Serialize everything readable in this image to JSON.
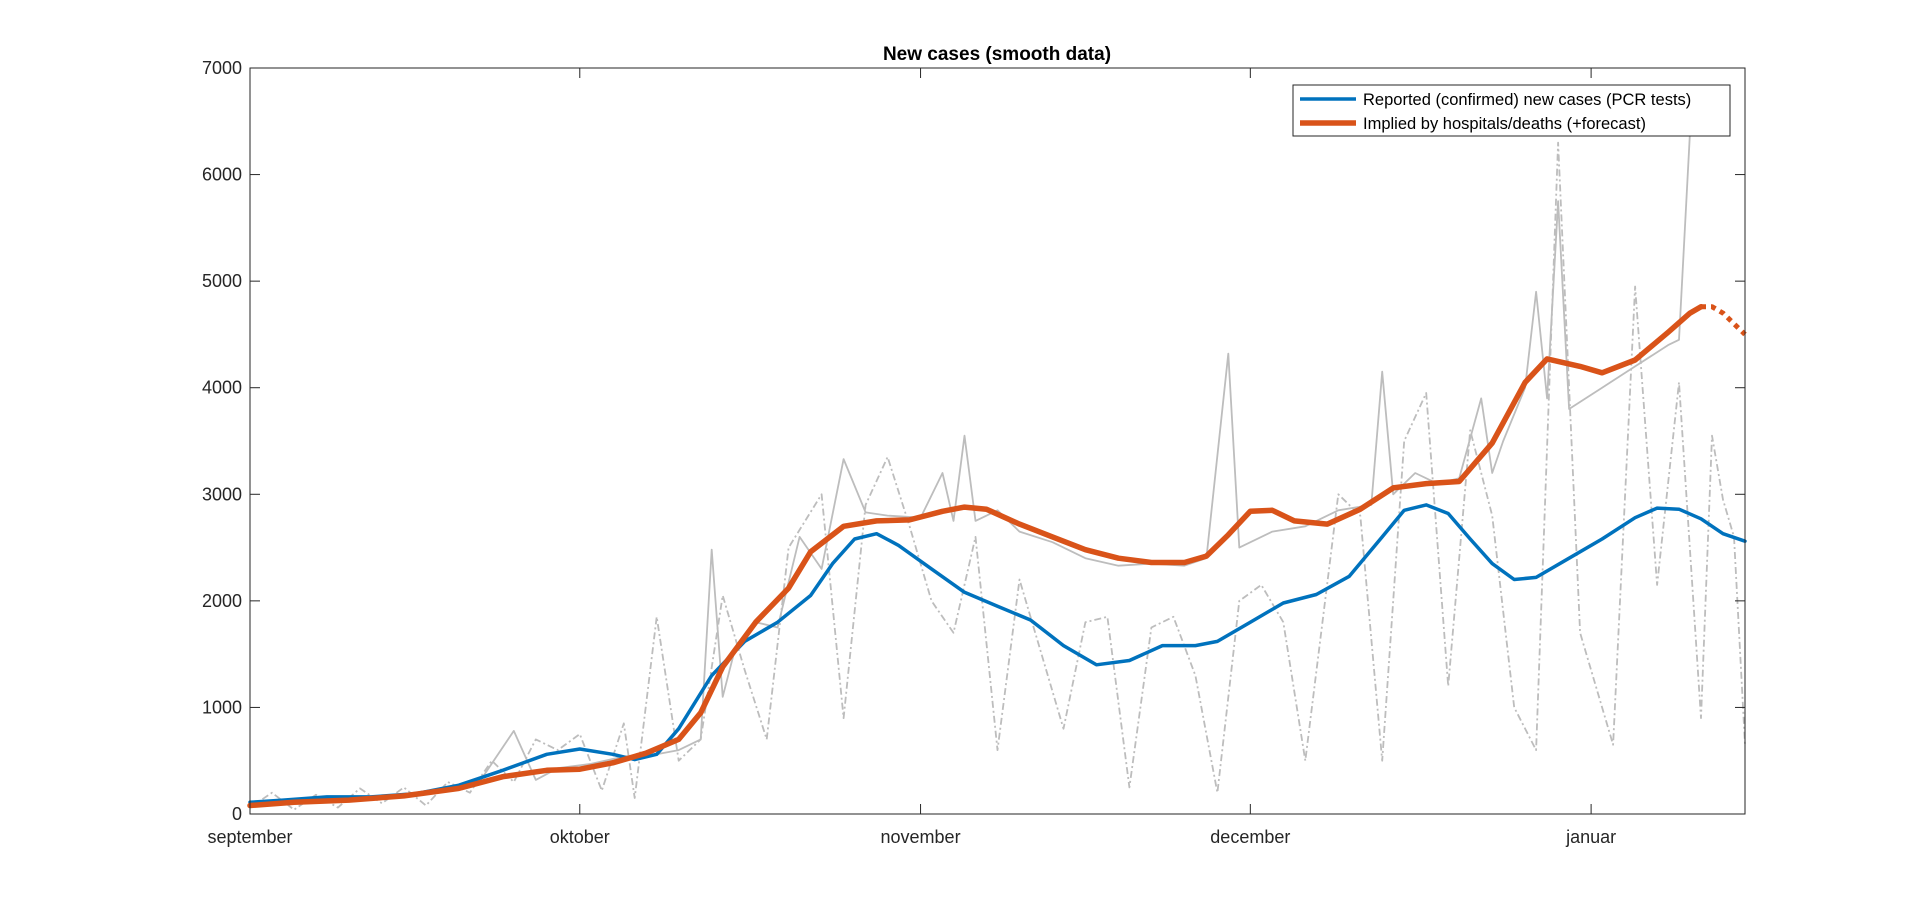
{
  "chart_data": {
    "type": "line",
    "title": "New cases (smooth data)",
    "xlabel": "",
    "ylabel": "",
    "xlim": [
      "2020-09-01",
      "2021-01-15"
    ],
    "ylim": [
      0,
      7000
    ],
    "yticks": [
      0,
      1000,
      2000,
      3000,
      4000,
      5000,
      6000,
      7000
    ],
    "xticks": [
      {
        "date": "2020-09-01",
        "label": "september"
      },
      {
        "date": "2020-10-01",
        "label": "oktober"
      },
      {
        "date": "2020-11-01",
        "label": "november"
      },
      {
        "date": "2020-12-01",
        "label": "december"
      },
      {
        "date": "2021-01-01",
        "label": "januar"
      }
    ],
    "grid": false,
    "legend_position": "top-right",
    "series": [
      {
        "name": "Reported (confirmed) new cases (PCR tests)",
        "color": "#0072BD",
        "style": "solid",
        "points": [
          [
            "2020-09-01",
            110
          ],
          [
            "2020-09-04",
            130
          ],
          [
            "2020-09-08",
            160
          ],
          [
            "2020-09-12",
            160
          ],
          [
            "2020-09-16",
            190
          ],
          [
            "2020-09-20",
            270
          ],
          [
            "2020-09-24",
            410
          ],
          [
            "2020-09-28",
            560
          ],
          [
            "2020-10-01",
            610
          ],
          [
            "2020-10-04",
            560
          ],
          [
            "2020-10-06",
            510
          ],
          [
            "2020-10-08",
            560
          ],
          [
            "2020-10-10",
            800
          ],
          [
            "2020-10-13",
            1300
          ],
          [
            "2020-10-16",
            1620
          ],
          [
            "2020-10-19",
            1800
          ],
          [
            "2020-10-22",
            2050
          ],
          [
            "2020-10-24",
            2350
          ],
          [
            "2020-10-26",
            2580
          ],
          [
            "2020-10-28",
            2630
          ],
          [
            "2020-10-30",
            2520
          ],
          [
            "2020-11-02",
            2300
          ],
          [
            "2020-11-05",
            2080
          ],
          [
            "2020-11-08",
            1950
          ],
          [
            "2020-11-11",
            1820
          ],
          [
            "2020-11-14",
            1580
          ],
          [
            "2020-11-17",
            1400
          ],
          [
            "2020-11-20",
            1440
          ],
          [
            "2020-11-23",
            1580
          ],
          [
            "2020-11-26",
            1580
          ],
          [
            "2020-11-28",
            1620
          ],
          [
            "2020-12-01",
            1800
          ],
          [
            "2020-12-04",
            1980
          ],
          [
            "2020-12-07",
            2060
          ],
          [
            "2020-12-10",
            2230
          ],
          [
            "2020-12-13",
            2600
          ],
          [
            "2020-12-15",
            2850
          ],
          [
            "2020-12-17",
            2900
          ],
          [
            "2020-12-19",
            2820
          ],
          [
            "2020-12-21",
            2580
          ],
          [
            "2020-12-23",
            2350
          ],
          [
            "2020-12-25",
            2200
          ],
          [
            "2020-12-27",
            2220
          ],
          [
            "2020-12-30",
            2400
          ],
          [
            "2021-01-02",
            2580
          ],
          [
            "2021-01-05",
            2780
          ],
          [
            "2021-01-07",
            2870
          ],
          [
            "2021-01-09",
            2860
          ],
          [
            "2021-01-11",
            2770
          ],
          [
            "2021-01-13",
            2630
          ],
          [
            "2021-01-15",
            2560
          ]
        ]
      },
      {
        "name": "Implied by hospitals/deaths (+forecast)",
        "color": "#D95319",
        "style": "solid",
        "points": [
          [
            "2020-09-01",
            80
          ],
          [
            "2020-09-05",
            110
          ],
          [
            "2020-09-10",
            130
          ],
          [
            "2020-09-15",
            170
          ],
          [
            "2020-09-20",
            240
          ],
          [
            "2020-09-24",
            350
          ],
          [
            "2020-09-28",
            410
          ],
          [
            "2020-10-01",
            420
          ],
          [
            "2020-10-04",
            480
          ],
          [
            "2020-10-07",
            570
          ],
          [
            "2020-10-10",
            700
          ],
          [
            "2020-10-12",
            950
          ],
          [
            "2020-10-14",
            1380
          ],
          [
            "2020-10-17",
            1800
          ],
          [
            "2020-10-20",
            2120
          ],
          [
            "2020-10-22",
            2460
          ],
          [
            "2020-10-25",
            2700
          ],
          [
            "2020-10-28",
            2750
          ],
          [
            "2020-10-31",
            2760
          ],
          [
            "2020-11-03",
            2840
          ],
          [
            "2020-11-05",
            2880
          ],
          [
            "2020-11-07",
            2860
          ],
          [
            "2020-11-10",
            2720
          ],
          [
            "2020-11-13",
            2600
          ],
          [
            "2020-11-16",
            2480
          ],
          [
            "2020-11-19",
            2400
          ],
          [
            "2020-11-22",
            2360
          ],
          [
            "2020-11-25",
            2360
          ],
          [
            "2020-11-27",
            2420
          ],
          [
            "2020-11-29",
            2620
          ],
          [
            "2020-12-01",
            2840
          ],
          [
            "2020-12-03",
            2850
          ],
          [
            "2020-12-05",
            2750
          ],
          [
            "2020-12-08",
            2720
          ],
          [
            "2020-12-11",
            2860
          ],
          [
            "2020-12-14",
            3060
          ],
          [
            "2020-12-17",
            3100
          ],
          [
            "2020-12-20",
            3120
          ],
          [
            "2020-12-23",
            3480
          ],
          [
            "2020-12-26",
            4050
          ],
          [
            "2020-12-28",
            4270
          ],
          [
            "2020-12-31",
            4200
          ],
          [
            "2021-01-02",
            4140
          ],
          [
            "2021-01-05",
            4260
          ],
          [
            "2021-01-08",
            4520
          ],
          [
            "2021-01-10",
            4700
          ],
          [
            "2021-01-11",
            4760
          ]
        ]
      },
      {
        "name": "",
        "color": "#D95319",
        "style": "dotted",
        "points": [
          [
            "2021-01-11",
            4760
          ],
          [
            "2021-01-12",
            4760
          ],
          [
            "2021-01-13",
            4700
          ],
          [
            "2021-01-14",
            4600
          ],
          [
            "2021-01-15",
            4500
          ]
        ]
      },
      {
        "name": "",
        "color": "#BDBDBD",
        "style": "solid",
        "points": [
          [
            "2020-09-01",
            90
          ],
          [
            "2020-09-04",
            120
          ],
          [
            "2020-09-07",
            150
          ],
          [
            "2020-09-10",
            140
          ],
          [
            "2020-09-13",
            170
          ],
          [
            "2020-09-16",
            200
          ],
          [
            "2020-09-19",
            210
          ],
          [
            "2020-09-22",
            320
          ],
          [
            "2020-09-25",
            780
          ],
          [
            "2020-09-27",
            320
          ],
          [
            "2020-09-29",
            430
          ],
          [
            "2020-10-02",
            470
          ],
          [
            "2020-10-05",
            540
          ],
          [
            "2020-10-08",
            560
          ],
          [
            "2020-10-10",
            600
          ],
          [
            "2020-10-12",
            700
          ],
          [
            "2020-10-13",
            2480
          ],
          [
            "2020-10-14",
            1100
          ],
          [
            "2020-10-15",
            1500
          ],
          [
            "2020-10-17",
            1800
          ],
          [
            "2020-10-19",
            1750
          ],
          [
            "2020-10-21",
            2600
          ],
          [
            "2020-10-23",
            2300
          ],
          [
            "2020-10-25",
            3330
          ],
          [
            "2020-10-27",
            2830
          ],
          [
            "2020-10-29",
            2800
          ],
          [
            "2020-11-01",
            2780
          ],
          [
            "2020-11-03",
            3200
          ],
          [
            "2020-11-04",
            2750
          ],
          [
            "2020-11-05",
            3550
          ],
          [
            "2020-11-06",
            2750
          ],
          [
            "2020-11-08",
            2850
          ],
          [
            "2020-11-10",
            2650
          ],
          [
            "2020-11-13",
            2550
          ],
          [
            "2020-11-16",
            2400
          ],
          [
            "2020-11-19",
            2330
          ],
          [
            "2020-11-22",
            2350
          ],
          [
            "2020-11-25",
            2330
          ],
          [
            "2020-11-27",
            2400
          ],
          [
            "2020-11-29",
            4320
          ],
          [
            "2020-11-30",
            2500
          ],
          [
            "2020-12-03",
            2650
          ],
          [
            "2020-12-06",
            2700
          ],
          [
            "2020-12-09",
            2850
          ],
          [
            "2020-12-12",
            2900
          ],
          [
            "2020-12-13",
            4150
          ],
          [
            "2020-12-14",
            3000
          ],
          [
            "2020-12-16",
            3200
          ],
          [
            "2020-12-18",
            3100
          ],
          [
            "2020-12-20",
            3150
          ],
          [
            "2020-12-22",
            3900
          ],
          [
            "2020-12-23",
            3200
          ],
          [
            "2020-12-24",
            3500
          ],
          [
            "2020-12-26",
            4000
          ],
          [
            "2020-12-27",
            4900
          ],
          [
            "2020-12-28",
            3900
          ],
          [
            "2020-12-29",
            5750
          ],
          [
            "2020-12-30",
            3800
          ],
          [
            "2021-01-02",
            4000
          ],
          [
            "2021-01-05",
            4200
          ],
          [
            "2021-01-08",
            4400
          ],
          [
            "2021-01-09",
            4450
          ],
          [
            "2021-01-10",
            6400
          ]
        ]
      },
      {
        "name": "",
        "color": "#BDBDBD",
        "style": "dashdot",
        "points": [
          [
            "2020-09-01",
            60
          ],
          [
            "2020-09-03",
            200
          ],
          [
            "2020-09-05",
            40
          ],
          [
            "2020-09-07",
            180
          ],
          [
            "2020-09-09",
            60
          ],
          [
            "2020-09-11",
            240
          ],
          [
            "2020-09-13",
            100
          ],
          [
            "2020-09-15",
            250
          ],
          [
            "2020-09-17",
            80
          ],
          [
            "2020-09-19",
            300
          ],
          [
            "2020-09-21",
            200
          ],
          [
            "2020-09-23",
            500
          ],
          [
            "2020-09-25",
            300
          ],
          [
            "2020-09-27",
            700
          ],
          [
            "2020-09-29",
            600
          ],
          [
            "2020-10-01",
            750
          ],
          [
            "2020-10-03",
            220
          ],
          [
            "2020-10-05",
            850
          ],
          [
            "2020-10-06",
            150
          ],
          [
            "2020-10-08",
            1850
          ],
          [
            "2020-10-10",
            500
          ],
          [
            "2020-10-12",
            700
          ],
          [
            "2020-10-14",
            2050
          ],
          [
            "2020-10-16",
            1350
          ],
          [
            "2020-10-18",
            700
          ],
          [
            "2020-10-20",
            2500
          ],
          [
            "2020-10-23",
            3000
          ],
          [
            "2020-10-25",
            900
          ],
          [
            "2020-10-27",
            2900
          ],
          [
            "2020-10-29",
            3350
          ],
          [
            "2020-10-31",
            2700
          ],
          [
            "2020-11-02",
            2000
          ],
          [
            "2020-11-04",
            1700
          ],
          [
            "2020-11-06",
            2600
          ],
          [
            "2020-11-08",
            600
          ],
          [
            "2020-11-10",
            2200
          ],
          [
            "2020-11-12",
            1500
          ],
          [
            "2020-11-14",
            800
          ],
          [
            "2020-11-16",
            1800
          ],
          [
            "2020-11-18",
            1850
          ],
          [
            "2020-11-20",
            250
          ],
          [
            "2020-11-22",
            1750
          ],
          [
            "2020-11-24",
            1850
          ],
          [
            "2020-11-26",
            1300
          ],
          [
            "2020-11-28",
            200
          ],
          [
            "2020-11-30",
            2000
          ],
          [
            "2020-12-02",
            2150
          ],
          [
            "2020-12-04",
            1800
          ],
          [
            "2020-12-06",
            500
          ],
          [
            "2020-12-09",
            3000
          ],
          [
            "2020-12-11",
            2800
          ],
          [
            "2020-12-13",
            500
          ],
          [
            "2020-12-15",
            3500
          ],
          [
            "2020-12-17",
            3950
          ],
          [
            "2020-12-19",
            1200
          ],
          [
            "2020-12-21",
            3600
          ],
          [
            "2020-12-23",
            2800
          ],
          [
            "2020-12-25",
            1000
          ],
          [
            "2020-12-27",
            600
          ],
          [
            "2020-12-29",
            6300
          ],
          [
            "2020-12-31",
            1700
          ],
          [
            "2021-01-03",
            650
          ],
          [
            "2021-01-05",
            4950
          ],
          [
            "2021-01-07",
            2150
          ],
          [
            "2021-01-09",
            4050
          ],
          [
            "2021-01-11",
            900
          ],
          [
            "2021-01-12",
            3550
          ],
          [
            "2021-01-13",
            2950
          ],
          [
            "2021-01-14",
            2600
          ],
          [
            "2021-01-15",
            650
          ]
        ]
      }
    ]
  }
}
